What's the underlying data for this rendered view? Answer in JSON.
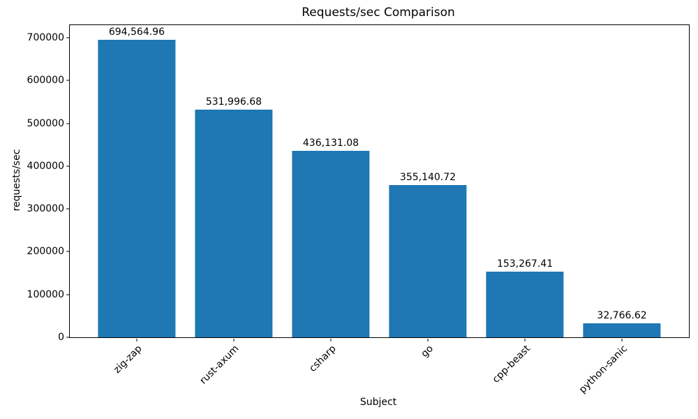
{
  "chart_data": {
    "type": "bar",
    "title": "Requests/sec Comparison",
    "xlabel": "Subject",
    "ylabel": "requests/sec",
    "categories": [
      "zig-zap",
      "rust-axum",
      "csharp",
      "go",
      "cpp-beast",
      "python-sanic"
    ],
    "values": [
      694564.96,
      531996.68,
      436131.08,
      355140.72,
      153267.41,
      32766.62
    ],
    "value_labels": [
      "694,564.96",
      "531,996.68",
      "436,131.08",
      "355,140.72",
      "153,267.41",
      "32,766.62"
    ],
    "yticks": [
      0,
      100000,
      200000,
      300000,
      400000,
      500000,
      600000,
      700000
    ],
    "ytick_labels": [
      "0",
      "100000",
      "200000",
      "300000",
      "400000",
      "500000",
      "600000",
      "700000"
    ],
    "ylim": [
      0,
      729293
    ],
    "bar_color": "#1f77b4",
    "axis_color": "#000000",
    "grid": false,
    "legend": "none",
    "xtick_rotation": 45
  }
}
